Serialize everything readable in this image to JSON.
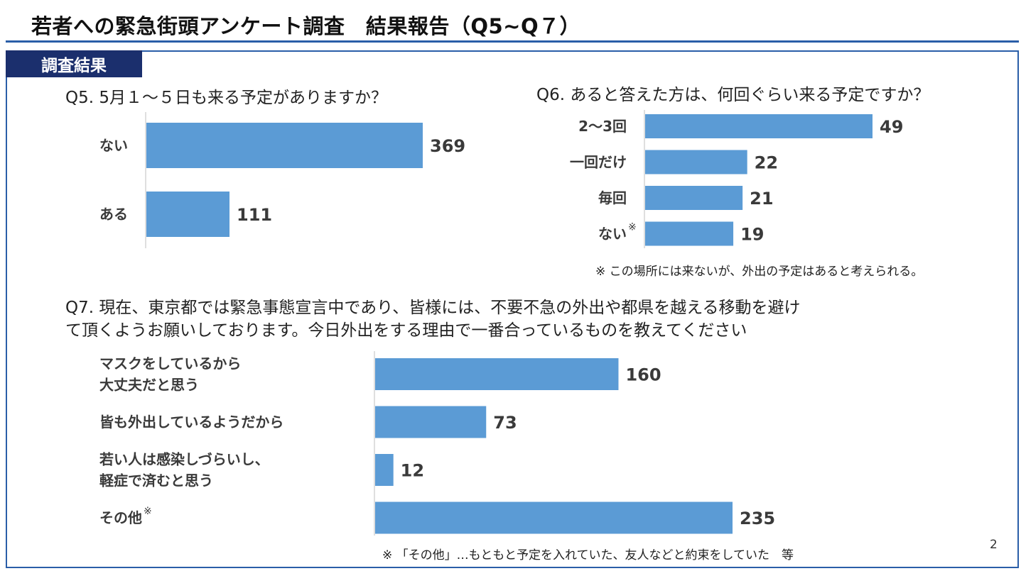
{
  "page": {
    "title": "若者への緊急街頭アンケート調査　結果報告（Q5~Q７）",
    "section_tab": "調査結果",
    "page_number": "2"
  },
  "colors": {
    "accent": "#2a5ea8",
    "tab": "#1b2f6d",
    "bar": "#5b9bd5"
  },
  "q5": {
    "title": "Q5. 5月１～５日も来る予定がありますか？"
  },
  "q6": {
    "title": "Q6. あると答えた方は、何回ぐらい来る予定ですか？",
    "note": "※ この場所には来ないが、外出の予定はあると考えられる。"
  },
  "q7": {
    "title_line1": "Q7. 現在、東京都では緊急事態宣言中であり、皆様には、不要不急の外出や都県を越える移動を避け",
    "title_line2": "て頂くようお願いしております。今日外出をする理由で一番合っているものを教えてください",
    "note": "※ 「その他」…もともと予定を入れていた、友人などと約束をしていた　等"
  },
  "chart_data": [
    {
      "type": "bar",
      "orientation": "horizontal",
      "title": "Q5. 5月１～５日も来る予定がありますか？",
      "categories": [
        "ない",
        "ある"
      ],
      "values": [
        369,
        111
      ]
    },
    {
      "type": "bar",
      "orientation": "horizontal",
      "title": "Q6. あると答えた方は、何回ぐらい来る予定ですか？",
      "categories": [
        "2～3回",
        "一回だけ",
        "毎回",
        "ない"
      ],
      "category_marks": [
        "",
        "",
        "",
        "※"
      ],
      "values": [
        49,
        22,
        21,
        19
      ]
    },
    {
      "type": "bar",
      "orientation": "horizontal",
      "categories": [
        [
          "マスクをしているから",
          "大丈夫だと思う"
        ],
        [
          "皆も外出しているようだから"
        ],
        [
          "若い人は感染しづらいし、",
          "軽症で済むと思う"
        ],
        [
          "その他"
        ]
      ],
      "category_marks": [
        "",
        "",
        "",
        "※"
      ],
      "values": [
        160,
        73,
        12,
        235
      ]
    }
  ]
}
